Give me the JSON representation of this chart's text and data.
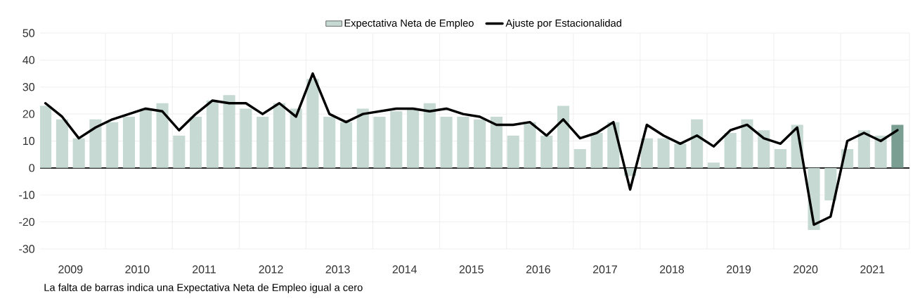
{
  "chart_data": {
    "type": "bar",
    "x": [
      2009,
      2009.25,
      2009.5,
      2009.75,
      2010,
      2010.25,
      2010.5,
      2010.75,
      2011,
      2011.25,
      2011.5,
      2011.75,
      2012,
      2012.25,
      2012.5,
      2012.75,
      2013,
      2013.25,
      2013.5,
      2013.75,
      2014,
      2014.25,
      2014.5,
      2014.75,
      2015,
      2015.25,
      2015.5,
      2015.75,
      2016,
      2016.25,
      2016.5,
      2016.75,
      2017,
      2017.25,
      2017.5,
      2017.75,
      2018,
      2018.25,
      2018.5,
      2018.75,
      2019,
      2019.25,
      2019.5,
      2019.75,
      2020,
      2020.25,
      2020.5,
      2020.75,
      2021,
      2021.25,
      2021.5,
      2021.75
    ],
    "series": [
      {
        "name": "Expectativa Neta de Empleo",
        "color": "#c6d9d3",
        "values": [
          23,
          18,
          11,
          18,
          17,
          19,
          22,
          24,
          12,
          19,
          25,
          27,
          22,
          19,
          24,
          22,
          33,
          19,
          17,
          22,
          19,
          21,
          22,
          24,
          19,
          19,
          18,
          19,
          12,
          17,
          12,
          23,
          7,
          13,
          17,
          -3,
          11,
          11,
          9,
          18,
          2,
          13,
          18,
          14,
          7,
          16,
          -23,
          -12,
          7,
          14,
          12,
          16
        ],
        "colors": [
          "#c6d9d3",
          "#c6d9d3",
          "#c6d9d3",
          "#c6d9d3",
          "#c6d9d3",
          "#c6d9d3",
          "#c6d9d3",
          "#c6d9d3",
          "#c6d9d3",
          "#c6d9d3",
          "#c6d9d3",
          "#c6d9d3",
          "#c6d9d3",
          "#c6d9d3",
          "#c6d9d3",
          "#c6d9d3",
          "#c6d9d3",
          "#c6d9d3",
          "#c6d9d3",
          "#c6d9d3",
          "#c6d9d3",
          "#c6d9d3",
          "#c6d9d3",
          "#c6d9d3",
          "#c6d9d3",
          "#c6d9d3",
          "#c6d9d3",
          "#c6d9d3",
          "#c6d9d3",
          "#c6d9d3",
          "#c6d9d3",
          "#c6d9d3",
          "#c6d9d3",
          "#c6d9d3",
          "#c6d9d3",
          "#c6d9d3",
          "#c6d9d3",
          "#c6d9d3",
          "#c6d9d3",
          "#c6d9d3",
          "#c6d9d3",
          "#c6d9d3",
          "#c6d9d3",
          "#c6d9d3",
          "#c6d9d3",
          "#c6d9d3",
          "#c6d9d3",
          "#c6d9d3",
          "#c6d9d3",
          "#c6d9d3",
          "#c6d9d3",
          "#7a9e92"
        ]
      },
      {
        "name": "Ajuste por Estacionalidad",
        "type": "line",
        "color": "#000000",
        "values": [
          24,
          19,
          11,
          15,
          18,
          20,
          22,
          21,
          14,
          20,
          25,
          24,
          24,
          20,
          24,
          19,
          35,
          20,
          17,
          20,
          21,
          22,
          22,
          21,
          22,
          20,
          19,
          16,
          16,
          17,
          12,
          18,
          11,
          13,
          17,
          -8,
          16,
          12,
          9,
          12,
          8,
          14,
          16,
          11,
          9,
          15,
          -21,
          -18,
          10,
          13,
          10,
          14
        ]
      }
    ],
    "xlim": [
      2008.92,
      2021.93
    ],
    "xticks": [
      {
        "value": 2009.375,
        "label": "2009"
      },
      {
        "value": 2010.375,
        "label": "2010"
      },
      {
        "value": 2011.375,
        "label": "2011"
      },
      {
        "value": 2012.375,
        "label": "2012"
      },
      {
        "value": 2013.375,
        "label": "2013"
      },
      {
        "value": 2014.375,
        "label": "2014"
      },
      {
        "value": 2015.375,
        "label": "2015"
      },
      {
        "value": 2016.375,
        "label": "2016"
      },
      {
        "value": 2017.375,
        "label": "2017"
      },
      {
        "value": 2018.375,
        "label": "2018"
      },
      {
        "value": 2019.375,
        "label": "2019"
      },
      {
        "value": 2020.375,
        "label": "2020"
      },
      {
        "value": 2021.375,
        "label": "2021"
      },
      {
        "value": 2009.9,
        "label": null
      },
      {
        "value": 2010.9,
        "label": null
      },
      {
        "value": 2011.9,
        "label": null
      },
      {
        "value": 2012.9,
        "label": null
      },
      {
        "value": 2013.9,
        "label": null
      },
      {
        "value": 2014.9,
        "label": null
      },
      {
        "value": 2015.9,
        "label": null
      },
      {
        "value": 2016.9,
        "label": null
      },
      {
        "value": 2017.9,
        "label": null
      },
      {
        "value": 2018.9,
        "label": null
      },
      {
        "value": 2019.9,
        "label": null
      },
      {
        "value": 2020.9,
        "label": null
      },
      {
        "value": 2021.93,
        "label": null
      }
    ],
    "ylim": [
      -30,
      50
    ],
    "yticks": [
      -30,
      -20,
      -10,
      0,
      10,
      20,
      30,
      40,
      50
    ],
    "grid": true,
    "legend": "top",
    "annotations": [
      "La falta de barras indica una Expectativa Neta de Empleo igual a cero"
    ]
  }
}
